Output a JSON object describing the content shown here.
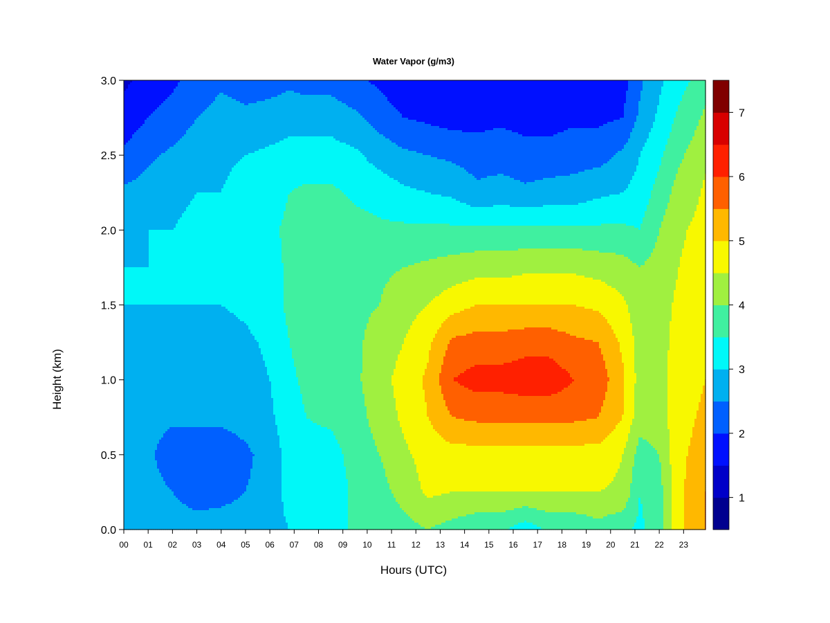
{
  "chart_data": {
    "type": "heatmap",
    "title": "Water Vapor (g/m3)",
    "xlabel": "Hours (UTC)",
    "ylabel": "Height (km)",
    "x_tick_labels": [
      "00",
      "01",
      "02",
      "03",
      "04",
      "05",
      "06",
      "07",
      "08",
      "09",
      "10",
      "11",
      "12",
      "13",
      "14",
      "15",
      "16",
      "17",
      "18",
      "19",
      "20",
      "21",
      "22",
      "23"
    ],
    "xlim": [
      0,
      23.9
    ],
    "ylim": [
      0,
      3
    ],
    "y_ticks": [
      0.0,
      0.5,
      1.0,
      1.5,
      2.0,
      2.5,
      3.0
    ],
    "y_tick_labels": [
      "0.0",
      "0.5",
      "1.0",
      "1.5",
      "2.0",
      "2.5",
      "3.0"
    ],
    "colorbar": {
      "range": [
        0.5,
        7.5
      ],
      "ticks": [
        1,
        2,
        3,
        4,
        5,
        6,
        7
      ],
      "tick_labels": [
        "1",
        "2",
        "3",
        "4",
        "5",
        "6",
        "7"
      ],
      "levels": [
        {
          "low": 0.5,
          "high": 1.0,
          "color": "#00008f"
        },
        {
          "low": 1.0,
          "high": 1.5,
          "color": "#0000c8"
        },
        {
          "low": 1.5,
          "high": 2.0,
          "color": "#0010ff"
        },
        {
          "low": 2.0,
          "high": 2.5,
          "color": "#0060ff"
        },
        {
          "low": 2.5,
          "high": 3.0,
          "color": "#00b0f0"
        },
        {
          "low": 3.0,
          "high": 3.5,
          "color": "#00f8f8"
        },
        {
          "low": 3.5,
          "high": 4.0,
          "color": "#40f0a0"
        },
        {
          "low": 4.0,
          "high": 4.5,
          "color": "#a0f040"
        },
        {
          "low": 4.5,
          "high": 5.0,
          "color": "#f8f800"
        },
        {
          "low": 5.0,
          "high": 5.5,
          "color": "#ffb800"
        },
        {
          "low": 5.5,
          "high": 6.0,
          "color": "#ff6000"
        },
        {
          "low": 6.0,
          "high": 6.5,
          "color": "#ff2000"
        },
        {
          "low": 6.5,
          "high": 7.0,
          "color": "#d80000"
        },
        {
          "low": 7.0,
          "high": 7.5,
          "color": "#800000"
        }
      ]
    },
    "hours": [
      0.0,
      1.0,
      2.0,
      3.0,
      4.0,
      5.0,
      6.0,
      6.8,
      7.5,
      8.5,
      9.5,
      10.5,
      11.5,
      12.5,
      13.5,
      14.5,
      15.5,
      16.5,
      17.5,
      18.5,
      19.5,
      20.5,
      21.2,
      22.0,
      22.8,
      23.5,
      23.9
    ],
    "heights_km": [
      0.0,
      0.25,
      0.5,
      0.75,
      1.0,
      1.25,
      1.5,
      1.75,
      2.0,
      2.25,
      2.5,
      2.75,
      3.0
    ],
    "values": [
      [
        2.8,
        2.8,
        2.8,
        2.8,
        2.8,
        2.8,
        2.8,
        3.0,
        3.2,
        3.2,
        3.6,
        3.6,
        3.8,
        4.0,
        3.8,
        3.6,
        3.6,
        3.2,
        3.6,
        3.6,
        3.8,
        3.6,
        3.4,
        3.8,
        4.9,
        5.2,
        5.5
      ],
      [
        2.8,
        2.7,
        2.5,
        2.2,
        2.3,
        2.5,
        2.7,
        3.2,
        3.2,
        3.2,
        3.6,
        3.8,
        4.2,
        4.6,
        4.5,
        4.5,
        4.5,
        4.5,
        4.5,
        4.5,
        4.5,
        4.4,
        3.5,
        3.8,
        4.9,
        5.2,
        5.5
      ],
      [
        2.8,
        2.6,
        2.2,
        2.2,
        2.2,
        2.4,
        2.7,
        3.2,
        3.3,
        3.3,
        3.7,
        4.0,
        4.4,
        4.7,
        4.8,
        4.8,
        4.8,
        4.8,
        4.8,
        4.8,
        4.8,
        4.5,
        3.8,
        4.0,
        4.9,
        5.1,
        5.3
      ],
      [
        2.7,
        2.7,
        2.6,
        2.6,
        2.6,
        2.7,
        2.9,
        3.3,
        3.5,
        3.6,
        3.8,
        4.2,
        4.6,
        5.0,
        5.5,
        5.6,
        5.6,
        5.6,
        5.6,
        5.6,
        5.5,
        5.0,
        4.2,
        4.3,
        4.8,
        5.0,
        5.1
      ],
      [
        3.0,
        2.8,
        2.8,
        2.8,
        2.7,
        2.8,
        3.0,
        3.4,
        3.6,
        3.7,
        3.9,
        4.3,
        4.7,
        5.1,
        6.0,
        6.2,
        6.2,
        6.3,
        6.3,
        6.0,
        5.8,
        5.1,
        4.3,
        4.3,
        4.8,
        4.9,
        5.0
      ],
      [
        3.0,
        2.9,
        2.9,
        2.9,
        2.8,
        2.9,
        3.1,
        3.5,
        3.7,
        3.8,
        3.9,
        4.2,
        4.5,
        4.9,
        5.6,
        5.7,
        5.7,
        5.8,
        5.8,
        5.6,
        5.5,
        4.9,
        4.3,
        4.3,
        4.7,
        4.8,
        4.9
      ],
      [
        3.0,
        3.0,
        3.0,
        3.0,
        3.0,
        3.1,
        3.3,
        3.6,
        3.7,
        3.8,
        3.9,
        4.0,
        4.3,
        4.5,
        4.8,
        5.0,
        5.0,
        5.0,
        5.0,
        5.0,
        4.9,
        4.6,
        4.2,
        4.3,
        4.6,
        4.8,
        4.9
      ],
      [
        3.0,
        3.0,
        3.1,
        3.1,
        3.1,
        3.2,
        3.3,
        3.6,
        3.7,
        3.8,
        3.9,
        3.9,
        4.0,
        4.1,
        4.2,
        4.3,
        4.3,
        4.4,
        4.4,
        4.4,
        4.3,
        4.2,
        4.0,
        4.2,
        4.5,
        4.7,
        4.8
      ],
      [
        2.9,
        3.0,
        3.0,
        3.1,
        3.1,
        3.3,
        3.4,
        3.6,
        3.7,
        3.8,
        3.7,
        3.6,
        3.6,
        3.6,
        3.6,
        3.6,
        3.6,
        3.6,
        3.6,
        3.6,
        3.6,
        3.6,
        3.5,
        4.0,
        4.4,
        4.6,
        4.7
      ],
      [
        2.6,
        2.7,
        2.9,
        3.0,
        3.0,
        3.2,
        3.3,
        3.5,
        3.6,
        3.6,
        3.4,
        3.3,
        3.1,
        3.0,
        2.9,
        2.6,
        2.7,
        2.6,
        2.7,
        2.7,
        2.9,
        3.0,
        3.2,
        3.7,
        4.2,
        4.4,
        4.6
      ],
      [
        2.1,
        2.4,
        2.6,
        2.8,
        2.9,
        3.0,
        3.1,
        3.2,
        3.2,
        3.2,
        3.1,
        2.8,
        2.6,
        2.5,
        2.4,
        2.3,
        2.3,
        2.2,
        2.2,
        2.3,
        2.3,
        2.6,
        3.0,
        3.4,
        3.9,
        4.2,
        4.4
      ],
      [
        1.7,
        2.0,
        2.2,
        2.5,
        2.7,
        2.6,
        2.7,
        2.8,
        2.8,
        2.8,
        2.6,
        2.3,
        2.0,
        1.9,
        1.8,
        1.8,
        1.9,
        1.8,
        1.8,
        1.9,
        1.9,
        2.0,
        2.6,
        3.1,
        3.6,
        3.9,
        4.1
      ],
      [
        1.4,
        1.7,
        1.9,
        2.2,
        2.4,
        2.3,
        2.3,
        2.4,
        2.3,
        2.3,
        2.1,
        1.9,
        1.6,
        1.6,
        1.5,
        1.6,
        1.6,
        1.5,
        1.5,
        1.6,
        1.7,
        1.8,
        2.4,
        2.9,
        3.3,
        3.6,
        3.8
      ]
    ]
  }
}
